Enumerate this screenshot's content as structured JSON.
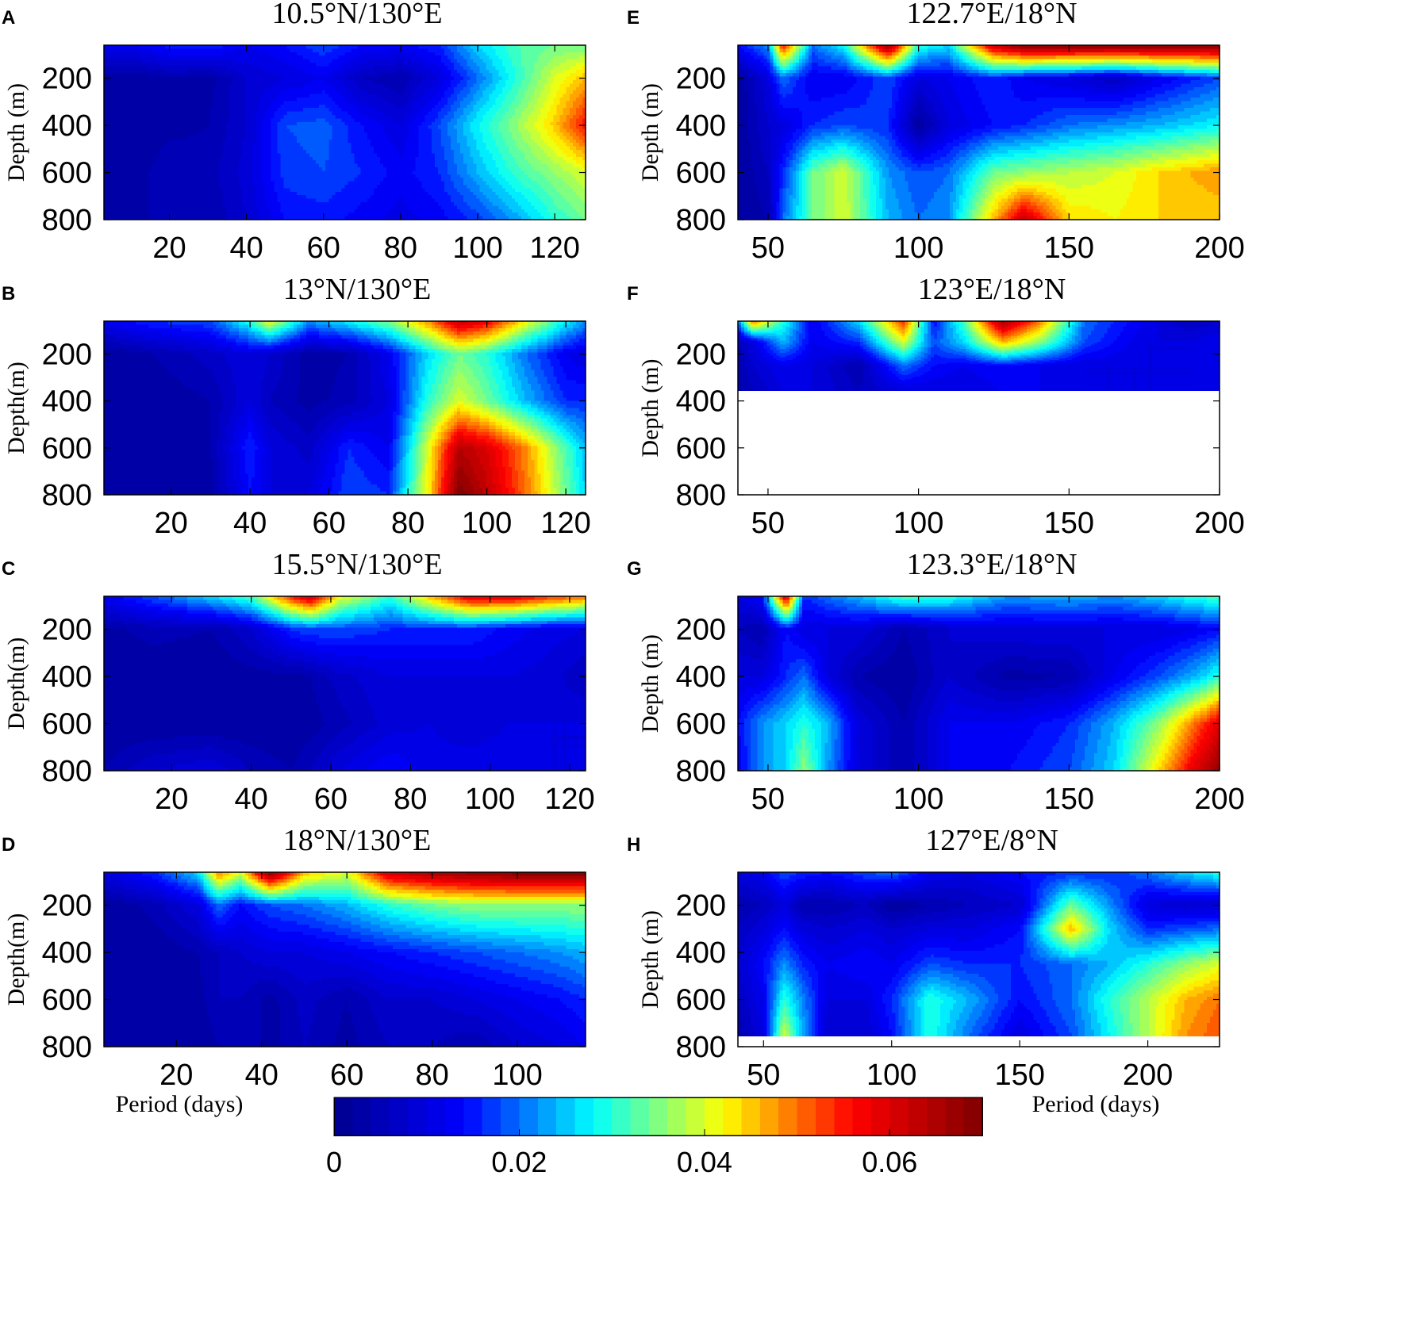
{
  "chart_data": [
    {
      "type": "heatmap",
      "letter": "A",
      "title": "10.5°N/130°E",
      "ylabel": "Depth (m)",
      "xlabel": "",
      "xlim": [
        3,
        128
      ],
      "ylim": [
        800,
        60
      ],
      "xticks": [
        "20",
        "40",
        "60",
        "80",
        "100",
        "120"
      ],
      "yticks": [
        "200",
        "400",
        "600",
        "800"
      ],
      "field": {
        "x": [
          3,
          10,
          20,
          30,
          40,
          50,
          60,
          70,
          80,
          90,
          100,
          110,
          120,
          128
        ],
        "depth": [
          60,
          200,
          400,
          600,
          800
        ],
        "values": [
          [
            0.012,
            0.012,
            0.015,
            0.016,
            0.012,
            0.014,
            0.018,
            0.014,
            0.013,
            0.016,
            0.026,
            0.032,
            0.034,
            0.034
          ],
          [
            0.002,
            0.002,
            0.004,
            0.003,
            0.008,
            0.01,
            0.012,
            0.006,
            0.004,
            0.01,
            0.02,
            0.03,
            0.04,
            0.046
          ],
          [
            0.002,
            0.002,
            0.003,
            0.004,
            0.008,
            0.018,
            0.019,
            0.014,
            0.01,
            0.018,
            0.028,
            0.036,
            0.045,
            0.056
          ],
          [
            0.002,
            0.002,
            0.006,
            0.005,
            0.009,
            0.017,
            0.018,
            0.016,
            0.013,
            0.016,
            0.024,
            0.031,
            0.036,
            0.04
          ],
          [
            0.002,
            0.002,
            0.006,
            0.004,
            0.008,
            0.014,
            0.015,
            0.013,
            0.011,
            0.013,
            0.017,
            0.023,
            0.03,
            0.034
          ]
        ]
      }
    },
    {
      "type": "heatmap",
      "letter": "B",
      "title": "13°N/130°E",
      "ylabel": "Depth(m)",
      "xlabel": "",
      "xlim": [
        3,
        125
      ],
      "ylim": [
        800,
        60
      ],
      "xticks": [
        "20",
        "40",
        "60",
        "80",
        "100",
        "120"
      ],
      "yticks": [
        "200",
        "400",
        "600",
        "800"
      ],
      "field": {
        "x": [
          3,
          15,
          30,
          40,
          45,
          55,
          65,
          75,
          85,
          93,
          100,
          110,
          120,
          125
        ],
        "depth": [
          60,
          200,
          400,
          600,
          800
        ],
        "values": [
          [
            0.012,
            0.016,
            0.018,
            0.03,
            0.042,
            0.022,
            0.028,
            0.035,
            0.048,
            0.063,
            0.058,
            0.042,
            0.028,
            0.022
          ],
          [
            0.002,
            0.004,
            0.007,
            0.01,
            0.008,
            0.003,
            0.004,
            0.012,
            0.026,
            0.034,
            0.03,
            0.02,
            0.012,
            0.01
          ],
          [
            0.002,
            0.002,
            0.004,
            0.01,
            0.006,
            0.003,
            0.005,
            0.01,
            0.03,
            0.04,
            0.034,
            0.024,
            0.016,
            0.016
          ],
          [
            0.002,
            0.002,
            0.004,
            0.016,
            0.01,
            0.007,
            0.016,
            0.012,
            0.04,
            0.064,
            0.06,
            0.048,
            0.032,
            0.024
          ],
          [
            0.002,
            0.002,
            0.003,
            0.014,
            0.01,
            0.01,
            0.018,
            0.016,
            0.042,
            0.07,
            0.063,
            0.05,
            0.034,
            0.026
          ]
        ]
      }
    },
    {
      "type": "heatmap",
      "letter": "C",
      "title": "15.5°N/130°E",
      "ylabel": "Depth(m)",
      "xlabel": "",
      "xlim": [
        3,
        124
      ],
      "ylim": [
        800,
        60
      ],
      "xticks": [
        "20",
        "40",
        "60",
        "80",
        "100",
        "120"
      ],
      "yticks": [
        "200",
        "400",
        "600",
        "800"
      ],
      "field": {
        "x": [
          3,
          15,
          30,
          40,
          50,
          55,
          62,
          75,
          85,
          95,
          105,
          115,
          124
        ],
        "depth": [
          60,
          200,
          400,
          600,
          800
        ],
        "values": [
          [
            0.012,
            0.018,
            0.026,
            0.032,
            0.055,
            0.062,
            0.042,
            0.03,
            0.046,
            0.06,
            0.06,
            0.054,
            0.05
          ],
          [
            0.003,
            0.005,
            0.004,
            0.008,
            0.016,
            0.018,
            0.018,
            0.016,
            0.016,
            0.016,
            0.013,
            0.011,
            0.01
          ],
          [
            0.002,
            0.002,
            0.002,
            0.003,
            0.003,
            0.004,
            0.007,
            0.01,
            0.01,
            0.01,
            0.01,
            0.009,
            0.006
          ],
          [
            0.002,
            0.002,
            0.002,
            0.002,
            0.002,
            0.003,
            0.005,
            0.009,
            0.01,
            0.008,
            0.01,
            0.01,
            0.01
          ],
          [
            0.004,
            0.008,
            0.01,
            0.006,
            0.004,
            0.006,
            0.01,
            0.014,
            0.011,
            0.012,
            0.012,
            0.01,
            0.01
          ]
        ]
      }
    },
    {
      "type": "heatmap",
      "letter": "D",
      "title": "18°N/130°E",
      "ylabel": "Depth(m)",
      "xlabel": "Period (days)",
      "xlim": [
        3,
        116
      ],
      "ylim": [
        800,
        60
      ],
      "xticks": [
        "20",
        "40",
        "60",
        "80",
        "100"
      ],
      "yticks": [
        "200",
        "400",
        "600",
        "800"
      ],
      "field": {
        "x": [
          3,
          15,
          25,
          30,
          35,
          42,
          50,
          60,
          70,
          80,
          90,
          100,
          110,
          116
        ],
        "depth": [
          60,
          200,
          400,
          600,
          800
        ],
        "values": [
          [
            0.01,
            0.016,
            0.026,
            0.05,
            0.04,
            0.07,
            0.046,
            0.04,
            0.062,
            0.066,
            0.068,
            0.07,
            0.07,
            0.07
          ],
          [
            0.002,
            0.005,
            0.01,
            0.02,
            0.014,
            0.018,
            0.02,
            0.024,
            0.03,
            0.034,
            0.036,
            0.036,
            0.036,
            0.036
          ],
          [
            0.002,
            0.002,
            0.004,
            0.006,
            0.008,
            0.01,
            0.01,
            0.012,
            0.014,
            0.016,
            0.018,
            0.02,
            0.022,
            0.024
          ],
          [
            0.002,
            0.002,
            0.003,
            0.006,
            0.006,
            0.003,
            0.007,
            0.004,
            0.008,
            0.008,
            0.01,
            0.012,
            0.014,
            0.016
          ],
          [
            0.002,
            0.002,
            0.002,
            0.004,
            0.006,
            0.003,
            0.006,
            0.003,
            0.006,
            0.006,
            0.004,
            0.008,
            0.01,
            0.012
          ]
        ]
      }
    },
    {
      "type": "heatmap",
      "letter": "E",
      "title": "122.7°E/18°N",
      "ylabel": "Depth (m)",
      "xlabel": "",
      "xlim": [
        40,
        200
      ],
      "ylim": [
        800,
        60
      ],
      "xticks": [
        "50",
        "100",
        "150",
        "200"
      ],
      "yticks": [
        "200",
        "400",
        "600",
        "800"
      ],
      "field": {
        "x": [
          40,
          50,
          55,
          65,
          75,
          90,
          100,
          110,
          125,
          135,
          150,
          165,
          180,
          200
        ],
        "depth": [
          60,
          200,
          400,
          600,
          800
        ],
        "values": [
          [
            0.014,
            0.022,
            0.056,
            0.02,
            0.028,
            0.068,
            0.03,
            0.026,
            0.062,
            0.07,
            0.07,
            0.07,
            0.07,
            0.07
          ],
          [
            0.002,
            0.01,
            0.02,
            0.012,
            0.012,
            0.018,
            0.01,
            0.012,
            0.016,
            0.012,
            0.01,
            0.006,
            0.012,
            0.018
          ],
          [
            0.002,
            0.008,
            0.01,
            0.016,
            0.018,
            0.016,
            0.002,
            0.01,
            0.014,
            0.016,
            0.02,
            0.022,
            0.024,
            0.028
          ],
          [
            0.002,
            0.006,
            0.016,
            0.034,
            0.04,
            0.022,
            0.018,
            0.02,
            0.034,
            0.036,
            0.038,
            0.04,
            0.044,
            0.048
          ],
          [
            0.002,
            0.004,
            0.02,
            0.034,
            0.04,
            0.024,
            0.02,
            0.022,
            0.046,
            0.062,
            0.044,
            0.042,
            0.044,
            0.044
          ]
        ]
      }
    },
    {
      "type": "heatmap",
      "letter": "F",
      "title": "123°E/18°N",
      "ylabel": "Depth (m)",
      "xlabel": "",
      "xlim": [
        40,
        200
      ],
      "ylim": [
        800,
        60
      ],
      "data_depth_max": 355,
      "xticks": [
        "50",
        "100",
        "150",
        "200"
      ],
      "yticks": [
        "200",
        "400",
        "600",
        "800"
      ],
      "field": {
        "x": [
          40,
          45,
          55,
          65,
          80,
          95,
          105,
          115,
          128,
          140,
          155,
          175,
          190,
          200
        ],
        "depth": [
          60,
          150,
          250,
          355
        ],
        "values": [
          [
            0.02,
            0.05,
            0.03,
            0.012,
            0.026,
            0.054,
            0.014,
            0.032,
            0.066,
            0.05,
            0.02,
            0.012,
            0.006,
            0.008
          ],
          [
            0.006,
            0.01,
            0.024,
            0.012,
            0.016,
            0.04,
            0.018,
            0.026,
            0.046,
            0.036,
            0.018,
            0.01,
            0.01,
            0.012
          ],
          [
            0.004,
            0.008,
            0.012,
            0.01,
            0.004,
            0.02,
            0.014,
            0.012,
            0.014,
            0.012,
            0.01,
            0.01,
            0.01,
            0.012
          ],
          [
            0.004,
            0.006,
            0.01,
            0.01,
            0.006,
            0.01,
            0.01,
            0.01,
            0.012,
            0.012,
            0.01,
            0.01,
            0.01,
            0.012
          ]
        ]
      }
    },
    {
      "type": "heatmap",
      "letter": "G",
      "title": "123.3°E/18°N",
      "ylabel": "Depth (m)",
      "xlabel": "",
      "xlim": [
        40,
        200
      ],
      "ylim": [
        800,
        60
      ],
      "xticks": [
        "50",
        "100",
        "150",
        "200"
      ],
      "yticks": [
        "200",
        "400",
        "600",
        "800"
      ],
      "field": {
        "x": [
          40,
          48,
          56,
          62,
          70,
          80,
          95,
          110,
          130,
          150,
          165,
          180,
          192,
          200
        ],
        "depth": [
          60,
          200,
          400,
          600,
          800
        ],
        "values": [
          [
            0.01,
            0.014,
            0.062,
            0.016,
            0.02,
            0.024,
            0.032,
            0.03,
            0.022,
            0.024,
            0.022,
            0.026,
            0.03,
            0.032
          ],
          [
            0.006,
            0.004,
            0.014,
            0.01,
            0.01,
            0.01,
            0.004,
            0.008,
            0.01,
            0.01,
            0.01,
            0.01,
            0.012,
            0.014
          ],
          [
            0.01,
            0.01,
            0.016,
            0.02,
            0.01,
            0.004,
            0.002,
            0.008,
            0.003,
            0.004,
            0.012,
            0.018,
            0.024,
            0.03
          ],
          [
            0.014,
            0.022,
            0.026,
            0.03,
            0.024,
            0.01,
            0.004,
            0.012,
            0.012,
            0.016,
            0.024,
            0.036,
            0.05,
            0.06
          ],
          [
            0.012,
            0.022,
            0.026,
            0.036,
            0.022,
            0.01,
            0.004,
            0.012,
            0.014,
            0.018,
            0.026,
            0.044,
            0.06,
            0.068
          ]
        ]
      }
    },
    {
      "type": "heatmap",
      "letter": "H",
      "title": "127°E/8°N",
      "ylabel": "Depth (m)",
      "xlabel": "Period (days)",
      "xlim": [
        40,
        228
      ],
      "ylim": [
        800,
        60
      ],
      "data_depth_max": 755,
      "xticks": [
        "50",
        "100",
        "150",
        "200"
      ],
      "yticks": [
        "200",
        "400",
        "600",
        "800"
      ],
      "field": {
        "x": [
          40,
          50,
          58,
          65,
          75,
          90,
          100,
          115,
          130,
          150,
          170,
          185,
          200,
          215,
          228
        ],
        "depth": [
          60,
          200,
          300,
          450,
          600,
          755
        ],
        "values": [
          [
            0.01,
            0.012,
            0.018,
            0.016,
            0.014,
            0.018,
            0.02,
            0.012,
            0.01,
            0.014,
            0.016,
            0.016,
            0.02,
            0.026,
            0.03
          ],
          [
            0.004,
            0.006,
            0.01,
            0.004,
            0.004,
            0.006,
            0.002,
            0.004,
            0.006,
            0.008,
            0.034,
            0.022,
            0.01,
            0.008,
            0.008
          ],
          [
            0.006,
            0.01,
            0.014,
            0.01,
            0.008,
            0.01,
            0.008,
            0.01,
            0.01,
            0.014,
            0.046,
            0.026,
            0.016,
            0.018,
            0.02
          ],
          [
            0.008,
            0.014,
            0.022,
            0.016,
            0.012,
            0.014,
            0.012,
            0.018,
            0.016,
            0.016,
            0.02,
            0.024,
            0.03,
            0.036,
            0.04
          ],
          [
            0.006,
            0.012,
            0.03,
            0.022,
            0.01,
            0.01,
            0.016,
            0.03,
            0.024,
            0.014,
            0.02,
            0.03,
            0.038,
            0.046,
            0.05
          ],
          [
            0.004,
            0.01,
            0.04,
            0.024,
            0.008,
            0.008,
            0.014,
            0.03,
            0.02,
            0.01,
            0.018,
            0.028,
            0.038,
            0.048,
            0.052
          ]
        ]
      }
    }
  ],
  "colorbar": {
    "min": 0,
    "max": 0.07,
    "ticks": [
      {
        "value": 0,
        "label": "0"
      },
      {
        "value": 0.02,
        "label": "0.02"
      },
      {
        "value": 0.04,
        "label": "0.04"
      },
      {
        "value": 0.06,
        "label": "0.06"
      }
    ],
    "colors": [
      "#00008f",
      "#0000ff",
      "#00ffff",
      "#ffff00",
      "#ff0000",
      "#800000"
    ]
  }
}
